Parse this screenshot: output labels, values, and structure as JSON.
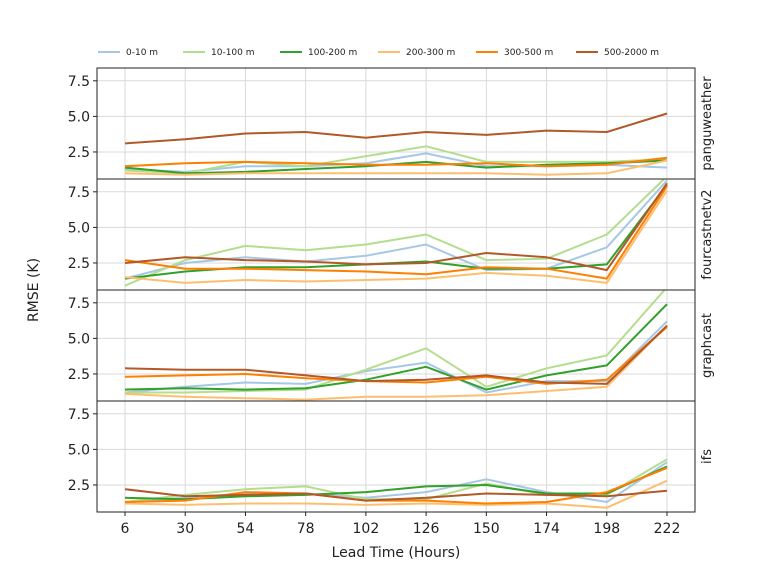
{
  "chart_data": {
    "type": "line",
    "xlabel": "Lead Time (Hours)",
    "ylabel": "RMSE (K)",
    "x": [
      6,
      30,
      54,
      78,
      102,
      126,
      150,
      174,
      198,
      222
    ],
    "x_ticks": [
      "6",
      "30",
      "54",
      "78",
      "102",
      "126",
      "150",
      "174",
      "198",
      "222"
    ],
    "y_ticks": [
      "2.5",
      "5.0",
      "7.5"
    ],
    "ylim": [
      0.6,
      8.4
    ],
    "grid": true,
    "legend_position": "top",
    "legend": [
      {
        "name": "0-10 m",
        "color": "#a6c8e4"
      },
      {
        "name": "10-100 m",
        "color": "#b2de8e"
      },
      {
        "name": "100-200 m",
        "color": "#33a02c"
      },
      {
        "name": "200-300 m",
        "color": "#fdbf6f"
      },
      {
        "name": "300-500 m",
        "color": "#ff7f00"
      },
      {
        "name": "500-2000 m",
        "color": "#b15928"
      }
    ],
    "panels": [
      {
        "label": "panguweather",
        "series": [
          {
            "name": "0-10 m",
            "values": [
              1.3,
              1.1,
              1.5,
              1.5,
              1.7,
              2.4,
              1.5,
              1.5,
              1.6,
              1.4
            ]
          },
          {
            "name": "10-100 m",
            "values": [
              1.2,
              1.0,
              1.8,
              1.5,
              2.2,
              2.9,
              1.8,
              1.8,
              1.8,
              2.0
            ]
          },
          {
            "name": "100-200 m",
            "values": [
              1.4,
              1.0,
              1.1,
              1.3,
              1.5,
              1.8,
              1.4,
              1.6,
              1.7,
              1.9
            ]
          },
          {
            "name": "200-300 m",
            "values": [
              1.0,
              0.9,
              1.0,
              1.0,
              1.0,
              1.0,
              1.0,
              0.9,
              1.0,
              1.9
            ]
          },
          {
            "name": "300-500 m",
            "values": [
              1.5,
              1.7,
              1.8,
              1.7,
              1.6,
              1.6,
              1.7,
              1.5,
              1.6,
              2.1
            ]
          },
          {
            "name": "500-2000 m",
            "values": [
              3.1,
              3.4,
              3.8,
              3.9,
              3.5,
              3.9,
              3.7,
              4.0,
              3.9,
              5.2
            ]
          }
        ]
      },
      {
        "label": "fourcastnetv2",
        "series": [
          {
            "name": "0-10 m",
            "values": [
              1.4,
              2.5,
              2.9,
              2.6,
              3.0,
              3.8,
              2.0,
              2.1,
              3.6,
              8.3
            ]
          },
          {
            "name": "10-100 m",
            "values": [
              0.9,
              2.7,
              3.7,
              3.4,
              3.8,
              4.5,
              2.7,
              2.8,
              4.5,
              8.6
            ]
          },
          {
            "name": "100-200 m",
            "values": [
              1.4,
              1.9,
              2.2,
              2.2,
              2.4,
              2.6,
              2.1,
              2.1,
              2.4,
              8.0
            ]
          },
          {
            "name": "200-300 m",
            "values": [
              1.5,
              1.1,
              1.3,
              1.2,
              1.3,
              1.4,
              1.8,
              1.6,
              1.1,
              7.6
            ]
          },
          {
            "name": "300-500 m",
            "values": [
              2.7,
              2.1,
              2.1,
              2.0,
              1.9,
              1.7,
              2.2,
              2.1,
              1.4,
              7.9
            ]
          },
          {
            "name": "500-2000 m",
            "values": [
              2.5,
              2.9,
              2.7,
              2.6,
              2.4,
              2.5,
              3.2,
              2.9,
              2.0,
              8.1
            ]
          }
        ]
      },
      {
        "label": "graphcast",
        "series": [
          {
            "name": "0-10 m",
            "values": [
              1.2,
              1.6,
              1.9,
              1.8,
              2.7,
              3.3,
              1.2,
              2.0,
              2.0,
              6.2
            ]
          },
          {
            "name": "10-100 m",
            "values": [
              1.2,
              1.2,
              1.3,
              1.4,
              2.8,
              4.3,
              1.6,
              2.9,
              3.8,
              8.6
            ]
          },
          {
            "name": "100-200 m",
            "values": [
              1.4,
              1.5,
              1.4,
              1.5,
              2.1,
              3.0,
              1.4,
              2.4,
              3.1,
              7.4
            ]
          },
          {
            "name": "200-300 m",
            "values": [
              1.1,
              0.9,
              0.8,
              0.7,
              0.9,
              0.9,
              1.0,
              1.3,
              1.6,
              5.9
            ]
          },
          {
            "name": "300-500 m",
            "values": [
              2.3,
              2.4,
              2.5,
              2.2,
              2.0,
              1.9,
              2.3,
              1.8,
              2.1,
              5.8
            ]
          },
          {
            "name": "500-2000 m",
            "values": [
              2.9,
              2.8,
              2.8,
              2.4,
              2.0,
              2.1,
              2.4,
              1.9,
              1.8,
              5.9
            ]
          }
        ]
      },
      {
        "label": "ifs",
        "series": [
          {
            "name": "0-10 m",
            "values": [
              1.3,
              1.6,
              1.9,
              1.9,
              1.6,
              2.0,
              2.9,
              2.0,
              1.3,
              4.1
            ]
          },
          {
            "name": "10-100 m",
            "values": [
              1.3,
              1.8,
              2.2,
              2.4,
              1.5,
              1.5,
              2.6,
              1.8,
              1.8,
              4.3
            ]
          },
          {
            "name": "100-200 m",
            "values": [
              1.6,
              1.5,
              1.7,
              1.8,
              2.0,
              2.4,
              2.5,
              1.9,
              1.9,
              3.8
            ]
          },
          {
            "name": "200-300 m",
            "values": [
              1.2,
              1.1,
              1.2,
              1.2,
              1.1,
              1.2,
              1.1,
              1.2,
              0.9,
              2.8
            ]
          },
          {
            "name": "300-500 m",
            "values": [
              1.3,
              1.4,
              2.0,
              1.9,
              1.4,
              1.4,
              1.2,
              1.3,
              2.0,
              3.7
            ]
          },
          {
            "name": "500-2000 m",
            "values": [
              2.2,
              1.7,
              1.8,
              1.9,
              1.4,
              1.6,
              1.9,
              1.8,
              1.7,
              2.1
            ]
          }
        ]
      }
    ]
  }
}
